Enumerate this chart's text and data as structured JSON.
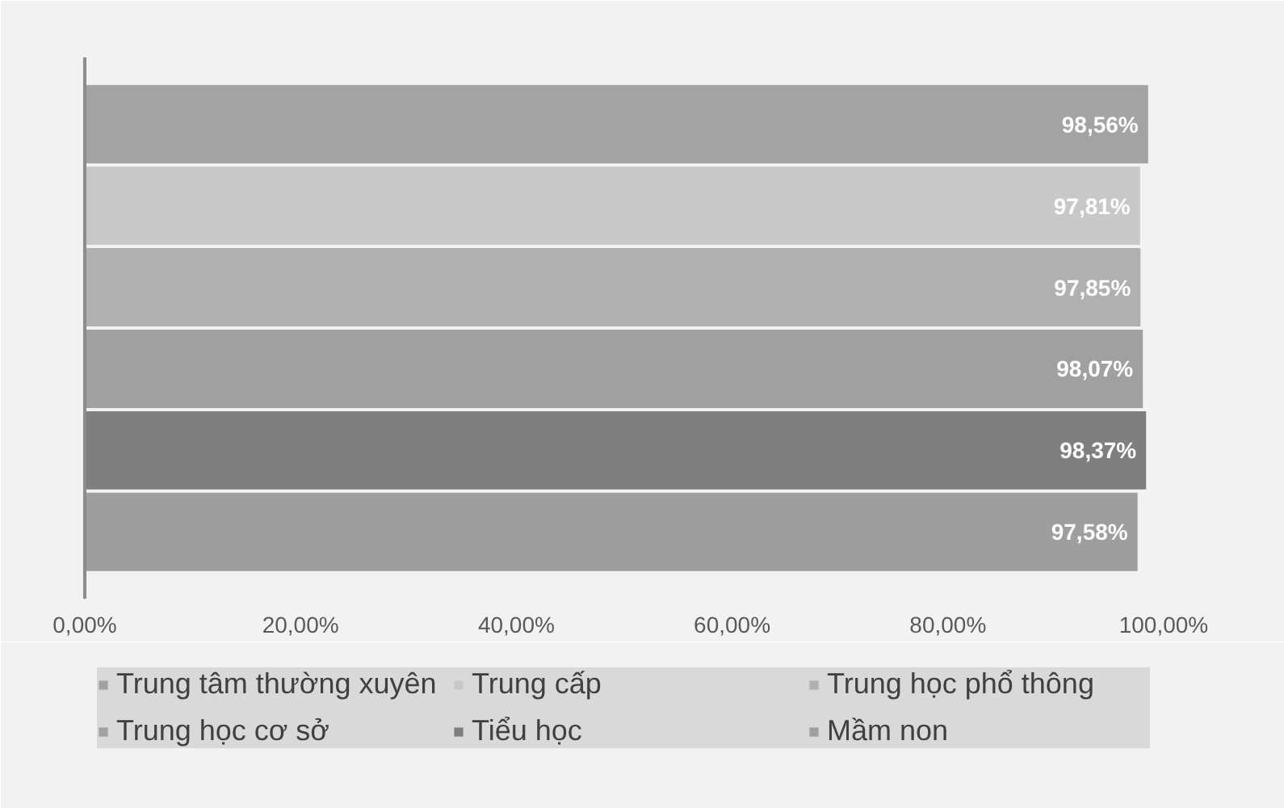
{
  "chart_data": {
    "type": "bar",
    "orientation": "horizontal",
    "categories": [
      null
    ],
    "series": [
      {
        "name": "Trung tâm thường xuyên",
        "color": "#a3a3a3",
        "values": [
          98.56
        ],
        "value_labels": [
          "98,56%"
        ]
      },
      {
        "name": "Trung cấp",
        "color": "#c8c8c8",
        "values": [
          97.81
        ],
        "value_labels": [
          "97,81%"
        ]
      },
      {
        "name": "Trung học phổ thông",
        "color": "#b0b0b0",
        "values": [
          97.85
        ],
        "value_labels": [
          "97,85%"
        ]
      },
      {
        "name": "Trung học cơ sở",
        "color": "#a0a0a0",
        "values": [
          98.07
        ],
        "value_labels": [
          "98,07%"
        ]
      },
      {
        "name": "Tiểu học",
        "color": "#7f7f7f",
        "values": [
          98.37
        ],
        "value_labels": [
          "98,37%"
        ]
      },
      {
        "name": "Mầm non",
        "color": "#9e9e9e",
        "values": [
          97.58
        ],
        "value_labels": [
          "97,58%"
        ]
      }
    ],
    "xlim": [
      0,
      100
    ],
    "xticks": [
      {
        "value": 0,
        "label": "0,00%"
      },
      {
        "value": 20,
        "label": "20,00%"
      },
      {
        "value": 40,
        "label": "40,00%"
      },
      {
        "value": 60,
        "label": "60,00%"
      },
      {
        "value": 80,
        "label": "80,00%"
      },
      {
        "value": 100,
        "label": "100,00%"
      }
    ],
    "grid": false,
    "legend": "bottom",
    "tick_labels": "x"
  }
}
